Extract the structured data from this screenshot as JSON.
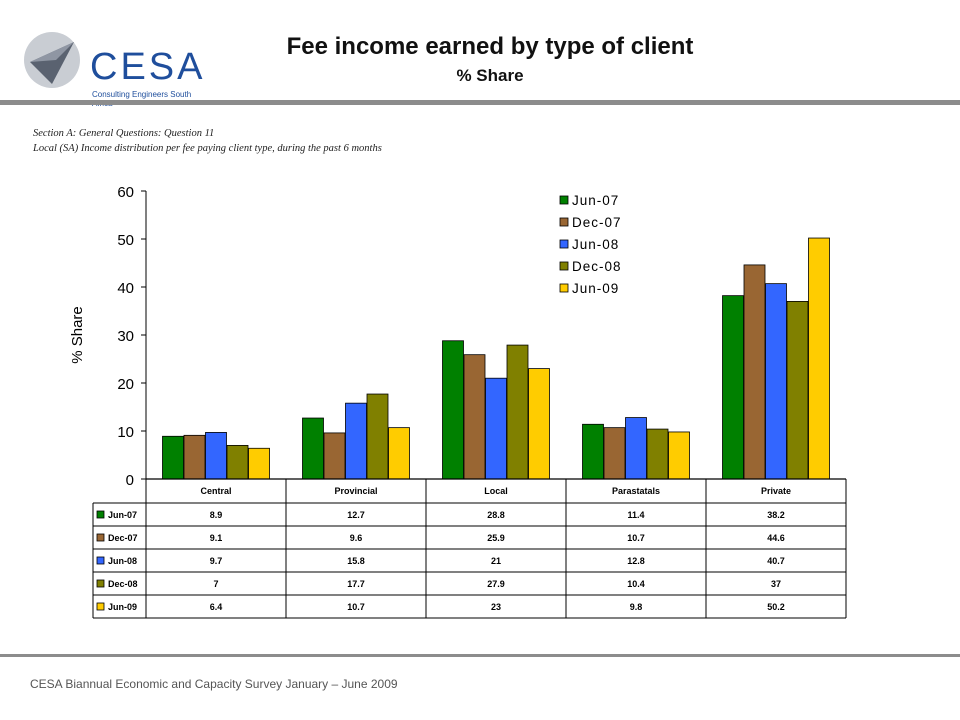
{
  "header": {
    "logo_text": "CESA",
    "logo_sub": "Consulting Engineers South Africa",
    "title": "Fee income earned by type of client",
    "subtitle": "% Share"
  },
  "notes": {
    "line1": "Section A: General Questions: Question 11",
    "line2": "Local (SA) Income distribution per fee paying client type, during the past 6 months"
  },
  "footer": {
    "text": "CESA Biannual Economic and Capacity Survey January – June 2009"
  },
  "colors": {
    "Jun-07": "#008000",
    "Dec-07": "#996633",
    "Jun-08": "#3366ff",
    "Dec-08": "#808000",
    "Jun-09": "#ffcc00",
    "logo_blue": "#1f4e9c"
  },
  "chart_data": {
    "type": "bar",
    "ylabel": "% Share",
    "ylim": [
      0,
      60
    ],
    "yticks": [
      0,
      10,
      20,
      30,
      40,
      50,
      60
    ],
    "legend_position": "top-right",
    "categories": [
      "Central",
      "Provincial",
      "Local",
      "Parastatals",
      "Private"
    ],
    "series": [
      {
        "name": "Jun-07",
        "values": [
          8.9,
          12.7,
          28.8,
          11.4,
          38.2
        ]
      },
      {
        "name": "Dec-07",
        "values": [
          9.1,
          9.6,
          25.9,
          10.7,
          44.6
        ]
      },
      {
        "name": "Jun-08",
        "values": [
          9.7,
          15.8,
          21,
          12.8,
          40.7
        ]
      },
      {
        "name": "Dec-08",
        "values": [
          7,
          17.7,
          27.9,
          10.4,
          37
        ]
      },
      {
        "name": "Jun-09",
        "values": [
          6.4,
          10.7,
          23,
          9.8,
          50.2
        ]
      }
    ],
    "data_table": true
  }
}
